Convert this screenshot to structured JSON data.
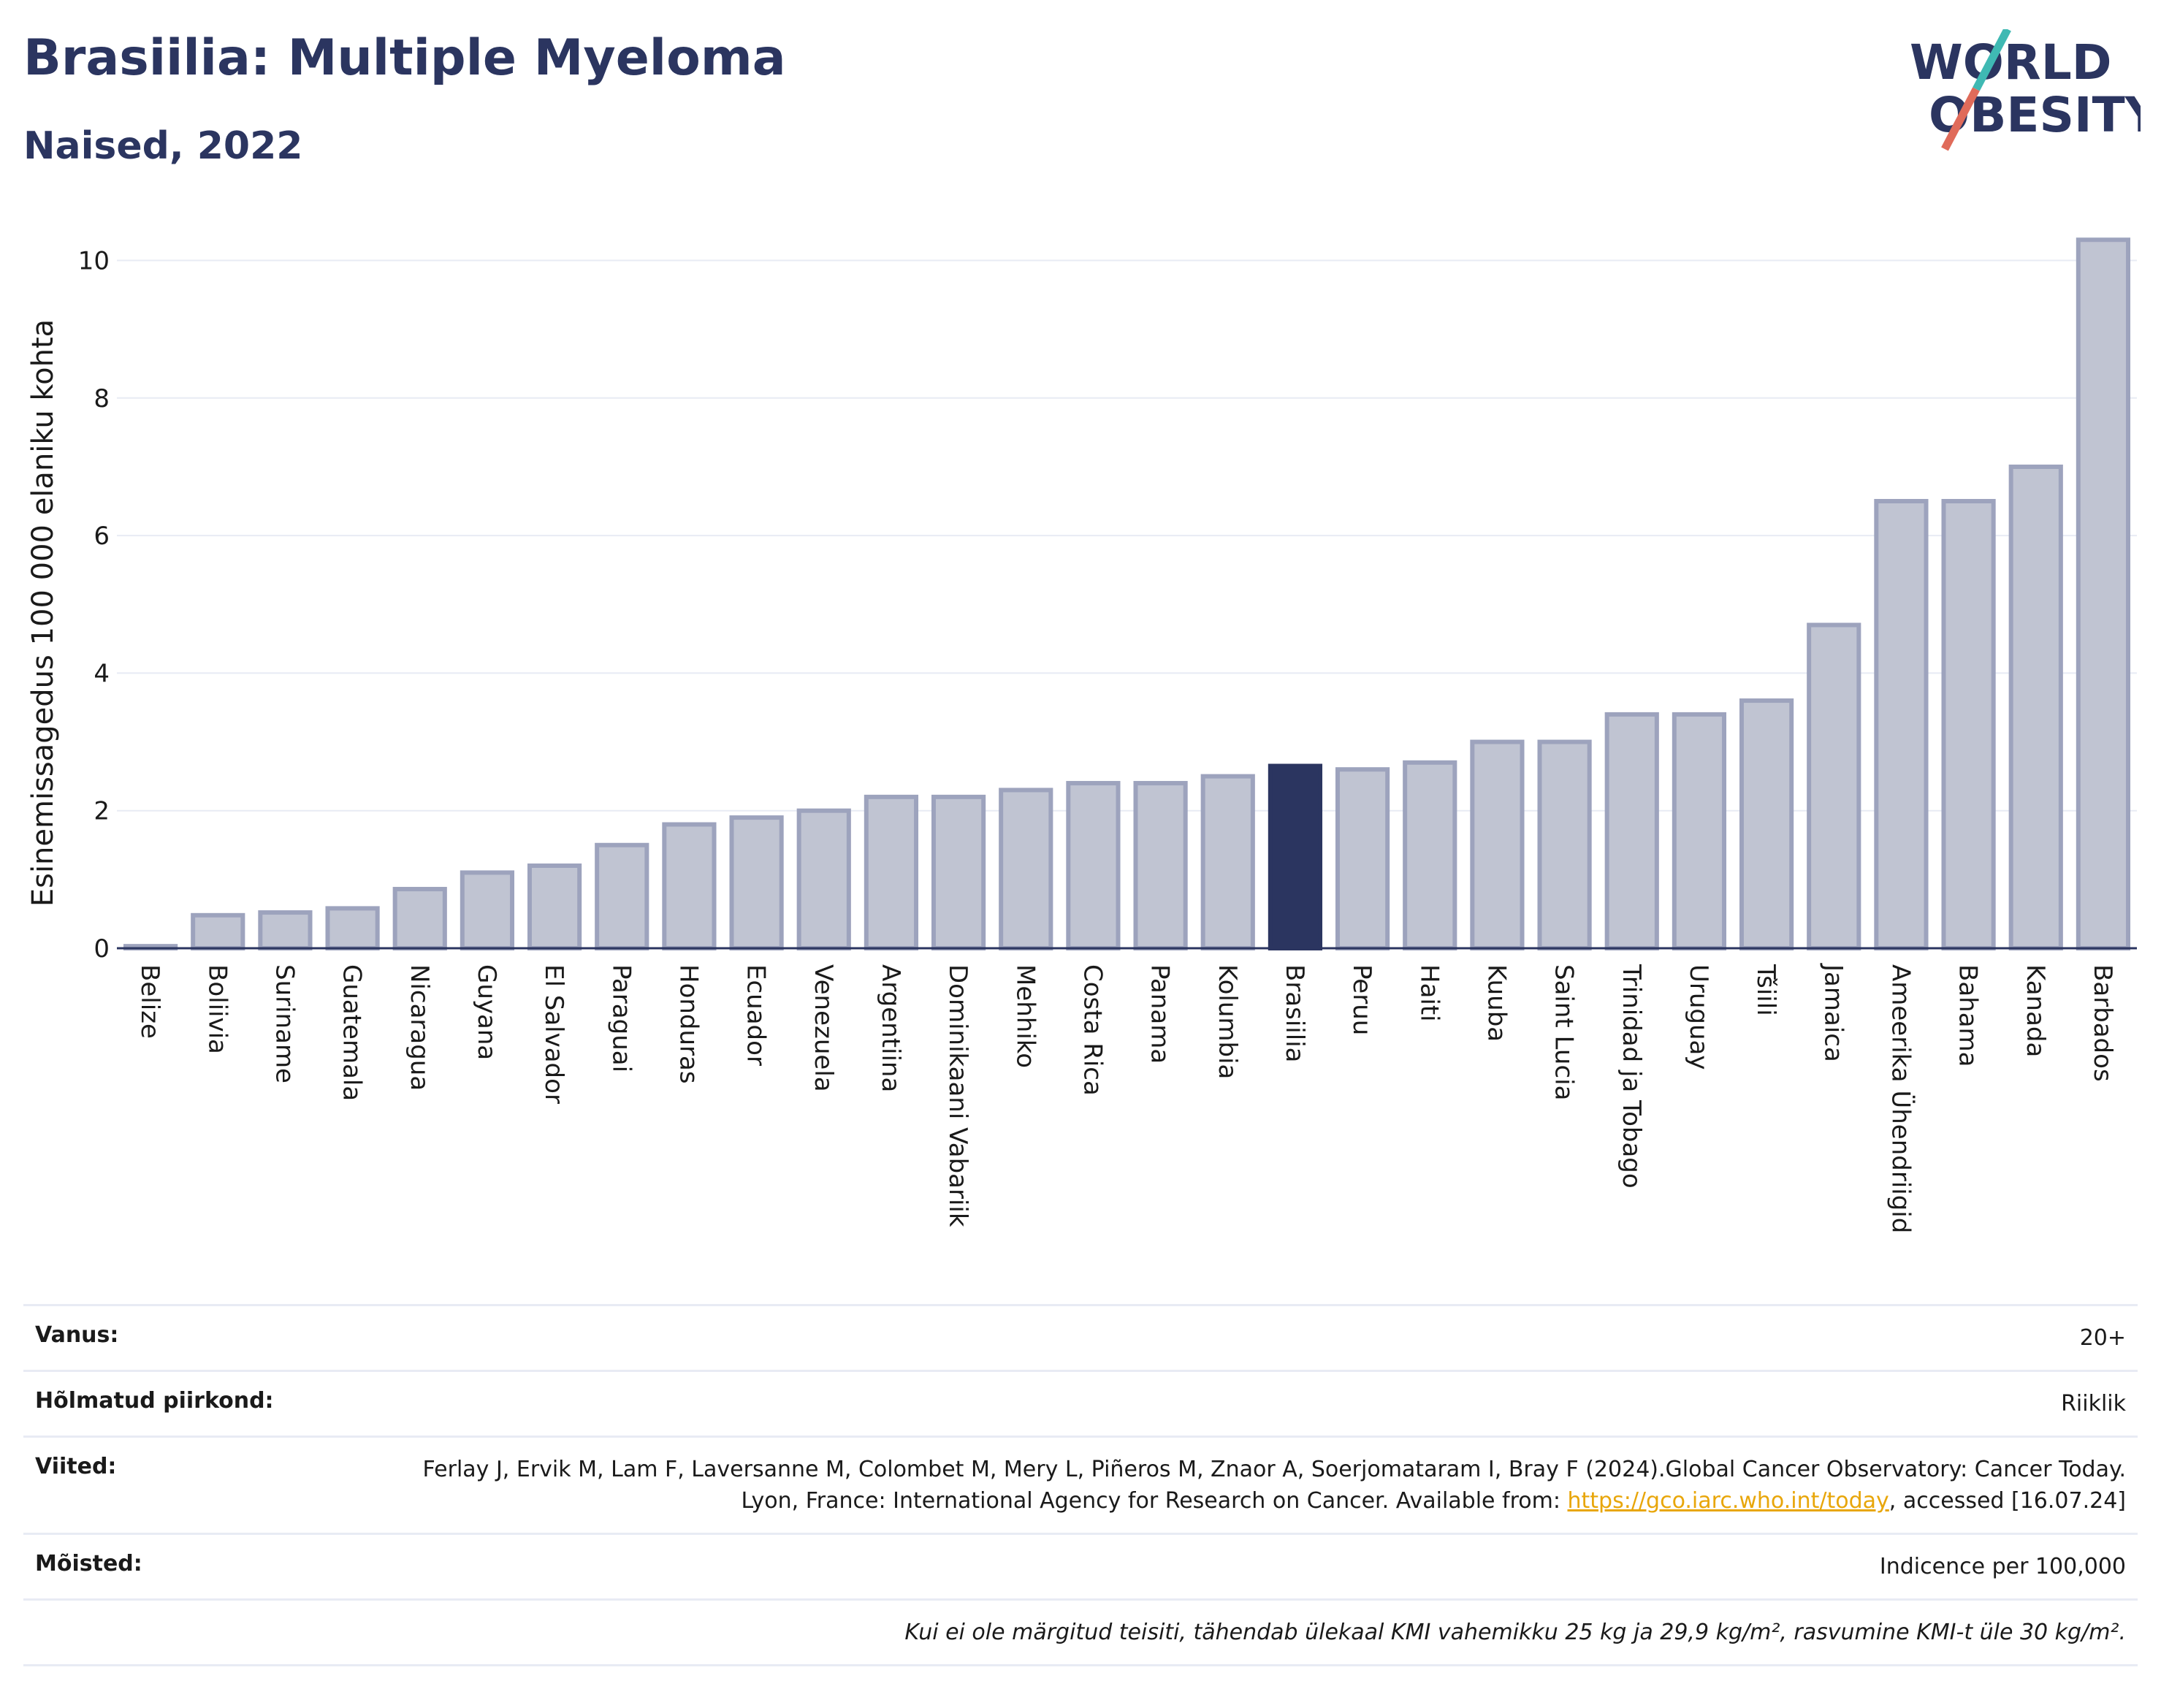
{
  "title": "Brasiilia: Multiple Myeloma",
  "subtitle": "Naised, 2022",
  "logo": {
    "line1": "WORLD",
    "line2": "OBESITY",
    "colors": {
      "text": "#2b3560",
      "slash_teal": "#3fb9b3",
      "slash_red": "#e06b5a"
    }
  },
  "chart_data": {
    "type": "bar",
    "ylabel": "Esinemissagedus 100 000 elaniku kohta",
    "ylim": [
      0,
      10.6
    ],
    "yticks": [
      0,
      2,
      4,
      6,
      8,
      10
    ],
    "grid": true,
    "highlight": "Brasiilia",
    "colors": {
      "bar": "#c0c4d2",
      "bar_edge": "#9da3bd",
      "highlight": "#2b3560"
    },
    "categories": [
      "Belize",
      "Boliivia",
      "Suriname",
      "Guatemala",
      "Nicaragua",
      "Guyana",
      "El Salvador",
      "Paraguai",
      "Honduras",
      "Ecuador",
      "Venezuela",
      "Argentiina",
      "Dominikaani Vabariik",
      "Mehhiko",
      "Costa Rica",
      "Panama",
      "Kolumbia",
      "Brasiilia",
      "Peruu",
      "Haiti",
      "Kuuba",
      "Saint Lucia",
      "Trinidad ja Tobago",
      "Uruguay",
      "Tšiili",
      "Jamaica",
      "Ameerika Ühendriigid",
      "Bahama",
      "Kanada",
      "Barbados"
    ],
    "values": [
      0.03,
      0.48,
      0.52,
      0.58,
      0.86,
      1.1,
      1.2,
      1.5,
      1.8,
      1.9,
      2.0,
      2.2,
      2.2,
      2.3,
      2.4,
      2.4,
      2.5,
      2.65,
      2.6,
      2.7,
      3.0,
      3.0,
      3.4,
      3.4,
      3.6,
      4.7,
      6.5,
      6.5,
      7.0,
      10.3
    ]
  },
  "meta": {
    "age_label": "Vanus:",
    "age_value": "20+",
    "region_label": "Hõlmatud piirkond:",
    "region_value": "Riiklik",
    "refs_label": "Viited:",
    "refs_text_1": "Ferlay J, Ervik M, Lam F, Laversanne M, Colombet M, Mery L, Piñeros M, Znaor A, Soerjomataram I, Bray F (2024).Global Cancer Observatory: Cancer Today. Lyon, France: International Agency for Research on Cancer. Available from: ",
    "refs_link": "https://gco.iarc.who.int/today",
    "refs_text_2": ", accessed [16.07.24]",
    "defs_label": "Mõisted:",
    "defs_value": "Indicence per 100,000",
    "note": "Kui ei ole märgitud teisiti, tähendab ülekaal KMI vahemikku 25 kg ja 29,9 kg/m², rasvumine KMI-t üle 30 kg/m²."
  }
}
